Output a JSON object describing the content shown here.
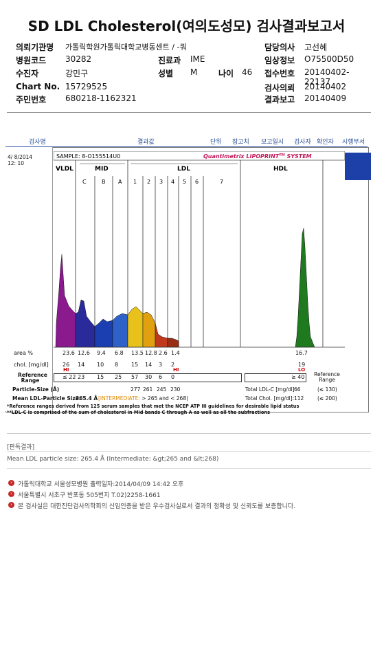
{
  "title": "SD LDL Cholesterol(여의도성모) 검사결과보고서",
  "header": {
    "institution_label": "의뢰기관명",
    "institution": "가톨릭학원가톨릭대학교병동센트 / -쿼",
    "doctor_label": "담당의사",
    "doctor": "고선혜",
    "hospital_code_label": "병원코드",
    "hospital_code": "30282",
    "dept_label": "진료과",
    "dept": "IME",
    "clinical_label": "임상정보",
    "clinical": "O75500D50",
    "patient_label": "수진자",
    "patient": "강민구",
    "sex_label": "성별",
    "sex": "M",
    "age_label": "나이",
    "age": "46",
    "receipt_label": "접수번호",
    "receipt": "20140402-22137",
    "chart_label": "Chart No.",
    "chart": "15729525",
    "request_label": "검사의뢰",
    "request": "20140402",
    "id_label": "주민번호",
    "id": "680218-1162321",
    "report_label": "결과보고",
    "report": "20140409"
  },
  "table_header": {
    "test_name": "검사명",
    "result": "결과값",
    "unit": "단위",
    "reference": "참고치",
    "report_date": "보고일시",
    "tester": "검사자",
    "confirmer": "확인자",
    "dept": "시행부서"
  },
  "panel": {
    "date": "4/ 8/2014",
    "time": "12: 10",
    "sample": "SAMPLE:  8-O155514U0",
    "brand": "Quantimetrix LIPOPRINT",
    "brand_tm": "TM",
    "brand_suffix": " SYSTEM",
    "band_groups": [
      "VLDL",
      "MID",
      "LDL",
      "HDL"
    ],
    "mid_bands": [
      "C",
      "B",
      "A"
    ],
    "ldl_bands": [
      "1",
      "2",
      "3",
      "4",
      "5",
      "6",
      "7"
    ]
  },
  "chart_data": {
    "type": "area",
    "title": "",
    "xlabel": "",
    "ylabel": "",
    "fractions": [
      "VLDL",
      "MID C",
      "MID B",
      "MID A",
      "LDL1",
      "LDL2",
      "LDL3",
      "LDL4",
      "LDL5",
      "LDL6",
      "LDL7",
      "HDL"
    ],
    "area_percent": [
      23.6,
      12.6,
      9.4,
      6.8,
      13.5,
      12.8,
      2.6,
      1.4,
      null,
      null,
      null,
      16.7
    ],
    "cholesterol_mg_dl": [
      26,
      14,
      10,
      8,
      15,
      14,
      3,
      2,
      null,
      null,
      null,
      19
    ],
    "colors": [
      "#8b1a8f",
      "#2a2a9a",
      "#1b3fb0",
      "#2f62c8",
      "#e8c21a",
      "#e0a010",
      "#c0391c",
      "#9a2e14",
      "#7a2a1a",
      "#7a2a1a",
      "#7a2a1a",
      "#1f7a1f"
    ]
  },
  "rows": {
    "area_label": "area %",
    "area_values": [
      "23.6",
      "12.6",
      "9.4",
      "6.8",
      "13.5",
      "12.8",
      "2.6",
      "1.4"
    ],
    "area_hdl": "16.7",
    "chol_label": "chol. [mg/dl]",
    "chol_values": [
      "26",
      "14",
      "10",
      "8",
      "15",
      "14",
      "3",
      "2"
    ],
    "chol_hdl": "19",
    "flag_vldl": "HI",
    "flag_ldl4": "HI",
    "flag_hdl": "LO",
    "ref_label_1": "Reference",
    "ref_label_2": "Range",
    "ref_values": [
      "≤ 22",
      "23",
      "15",
      "25",
      "57",
      "30",
      "6",
      "0"
    ],
    "ref_hdl": "≥ 40",
    "ref_right_1": "Reference",
    "ref_right_2": "Range",
    "particle_label": "Particle-Size (Å)",
    "particle_values": [
      "277",
      "261",
      "245",
      "230"
    ],
    "mean_label": "Mean LDL-Particle Size:",
    "mean_value": "265.4 Å",
    "mean_note": "[INTERMEDIATE:",
    "mean_note2": " > 265 and < 268)",
    "total_ldl_label": "Total LDL-C [mg/dl]:",
    "total_ldl": "66",
    "total_ldl_ref": "(≤ 130)",
    "total_chol_label": "Total Chol. [mg/dl]:",
    "total_chol": "112",
    "total_chol_ref": "(≤ 200)",
    "footnote1": "*Reference ranges derived from 125 serum samples that met the NCEP ATP III guidelines for desirable lipid status",
    "footnote2": "**LDL-C is comprised of the sum of cholesterol in Mid bands C through A as well as all the subfractions"
  },
  "opinion": {
    "heading": "[판독결과]",
    "text": "Mean LDL particle size: 265.4 Å (Intermediate: &gt;265 and &lt;268)"
  },
  "footer": {
    "line1": "가톨릭대학교 서울성모병원      출력일자:2014/04/09 14:42 오후",
    "line2": "서울특별시 서초구 반포동 505번지 T.02)2258-1661",
    "line3": "본 검사실은 대한진단검사의학회의 신임인증을 받은 우수검사실로서 결과의 정확성 및 신뢰도를 보증합니다."
  }
}
